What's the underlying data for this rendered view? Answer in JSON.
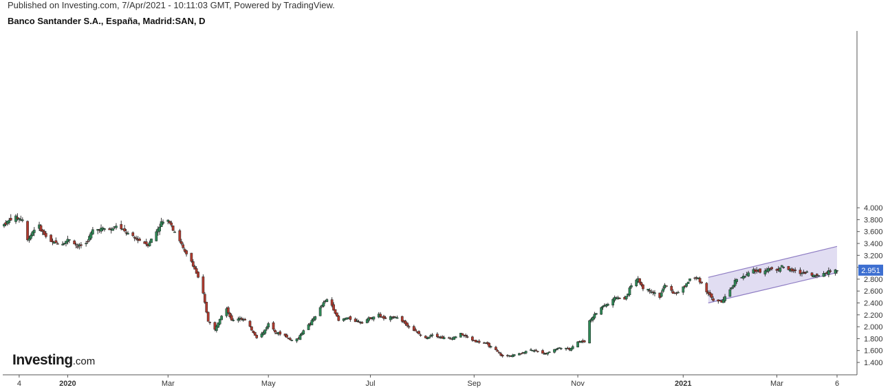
{
  "header": {
    "published": "Published on Investing.com, 7/Apr/2021 - 10:11:03 GMT, Powered by TradingView.",
    "title": "Banco Santander S.A., España, Madrid:SAN, D"
  },
  "logo": {
    "main": "Investing",
    "suffix": ".com"
  },
  "colors": {
    "up": "#2f8a57",
    "down": "#b03a2e",
    "wick": "#333333",
    "channel_fill": "#d9d4ef",
    "channel_line": "#8e7cc3",
    "price_badge": "#3d6fd1"
  },
  "chart_data": {
    "type": "candlestick",
    "title": "Banco Santander S.A., España, Madrid:SAN, D",
    "ylim": [
      1.33,
      4.1
    ],
    "y_ticks": [
      "4.000",
      "3.800",
      "3.600",
      "3.400",
      "3.200",
      "3.000",
      "2.800",
      "2.600",
      "2.400",
      "2.200",
      "2.000",
      "1.800",
      "1.600",
      "1.400"
    ],
    "x_ticks": [
      "4",
      "2020",
      "Mar",
      "May",
      "Jul",
      "Sep",
      "Nov",
      "2021",
      "Mar",
      "6"
    ],
    "last_price": "2.951",
    "grid": false,
    "trend_channel": {
      "upper": [
        [
          "Jan 19, 2021",
          2.83
        ],
        [
          "Apr 6, 2021",
          3.35
        ]
      ],
      "lower": [
        [
          "Jan 19, 2021",
          2.4
        ],
        [
          "Apr 6, 2021",
          2.91
        ]
      ]
    },
    "series": [
      {
        "date": "Nov 25, 2019",
        "close": 3.72
      },
      {
        "date": "Dec 1, 2019",
        "close": 3.85
      },
      {
        "date": "Dec 6, 2019",
        "close": 3.8
      },
      {
        "date": "Dec 9, 2019",
        "close": 3.45
      },
      {
        "date": "Dec 13, 2019",
        "close": 3.65
      },
      {
        "date": "Dec 16, 2019",
        "close": 3.68
      },
      {
        "date": "Dec 19, 2019",
        "close": 3.55
      },
      {
        "date": "Dec 23, 2019",
        "close": 3.42
      },
      {
        "date": "Dec 30, 2019",
        "close": 3.4
      },
      {
        "date": "Jan 3, 2020",
        "close": 3.48
      },
      {
        "date": "Jan 8, 2020",
        "close": 3.35
      },
      {
        "date": "Jan 13, 2020",
        "close": 3.4
      },
      {
        "date": "Jan 17, 2020",
        "close": 3.62
      },
      {
        "date": "Jan 22, 2020",
        "close": 3.65
      },
      {
        "date": "Jan 28, 2020",
        "close": 3.63
      },
      {
        "date": "Jan 31, 2020",
        "close": 3.7
      },
      {
        "date": "Feb 5, 2020",
        "close": 3.6
      },
      {
        "date": "Feb 10, 2020",
        "close": 3.5
      },
      {
        "date": "Feb 14, 2020",
        "close": 3.45
      },
      {
        "date": "Feb 19, 2020",
        "close": 3.38
      },
      {
        "date": "Feb 24, 2020",
        "close": 3.6
      },
      {
        "date": "Feb 27, 2020",
        "close": 3.75
      },
      {
        "date": "Mar 3, 2020",
        "close": 3.78
      },
      {
        "date": "Mar 5, 2020",
        "close": 3.65
      },
      {
        "date": "Mar 9, 2020",
        "close": 3.45
      },
      {
        "date": "Mar 12, 2020",
        "close": 3.25
      },
      {
        "date": "Mar 16, 2020",
        "close": 3.1
      },
      {
        "date": "Mar 19, 2020",
        "close": 2.9
      },
      {
        "date": "Mar 23, 2020",
        "close": 2.55
      },
      {
        "date": "Mar 26, 2020",
        "close": 2.1
      },
      {
        "date": "Mar 30, 2020",
        "close": 1.95
      },
      {
        "date": "Apr 2, 2020",
        "close": 2.15
      },
      {
        "date": "Apr 6, 2020",
        "close": 2.32
      },
      {
        "date": "Apr 9, 2020",
        "close": 2.1
      },
      {
        "date": "Apr 14, 2020",
        "close": 2.15
      },
      {
        "date": "Apr 17, 2020",
        "close": 2.1
      },
      {
        "date": "Apr 21, 2020",
        "close": 1.95
      },
      {
        "date": "Apr 24, 2020",
        "close": 1.82
      },
      {
        "date": "Apr 28, 2020",
        "close": 1.9
      },
      {
        "date": "May 1, 2020",
        "close": 2.05
      },
      {
        "date": "May 6, 2020",
        "close": 1.9
      },
      {
        "date": "May 11, 2020",
        "close": 1.85
      },
      {
        "date": "May 14, 2020",
        "close": 1.78
      },
      {
        "date": "May 19, 2020",
        "close": 1.8
      },
      {
        "date": "May 22, 2020",
        "close": 1.95
      },
      {
        "date": "May 26, 2020",
        "close": 2.05
      },
      {
        "date": "May 29, 2020",
        "close": 2.18
      },
      {
        "date": "Jun 3, 2020",
        "close": 2.4
      },
      {
        "date": "Jun 6, 2020",
        "close": 2.48
      },
      {
        "date": "Jun 9, 2020",
        "close": 2.3
      },
      {
        "date": "Jun 12, 2020",
        "close": 2.1
      },
      {
        "date": "Jun 17, 2020",
        "close": 2.15
      },
      {
        "date": "Jun 22, 2020",
        "close": 2.1
      },
      {
        "date": "Jun 26, 2020",
        "close": 2.08
      },
      {
        "date": "Jul 1, 2020",
        "close": 2.15
      },
      {
        "date": "Jul 6, 2020",
        "close": 2.2
      },
      {
        "date": "Jul 10, 2020",
        "close": 2.12
      },
      {
        "date": "Jul 15, 2020",
        "close": 2.18
      },
      {
        "date": "Jul 20, 2020",
        "close": 2.1
      },
      {
        "date": "Jul 24, 2020",
        "close": 2.0
      },
      {
        "date": "Jul 29, 2020",
        "close": 1.9
      },
      {
        "date": "Aug 3, 2020",
        "close": 1.8
      },
      {
        "date": "Aug 7, 2020",
        "close": 1.88
      },
      {
        "date": "Aug 12, 2020",
        "close": 1.82
      },
      {
        "date": "Aug 18, 2020",
        "close": 1.8
      },
      {
        "date": "Aug 24, 2020",
        "close": 1.88
      },
      {
        "date": "Aug 28, 2020",
        "close": 1.82
      },
      {
        "date": "Sep 2, 2020",
        "close": 1.75
      },
      {
        "date": "Sep 8, 2020",
        "close": 1.72
      },
      {
        "date": "Sep 14, 2020",
        "close": 1.6
      },
      {
        "date": "Sep 18, 2020",
        "close": 1.5
      },
      {
        "date": "Sep 23, 2020",
        "close": 1.52
      },
      {
        "date": "Sep 29, 2020",
        "close": 1.55
      },
      {
        "date": "Oct 5, 2020",
        "close": 1.62
      },
      {
        "date": "Oct 9, 2020",
        "close": 1.58
      },
      {
        "date": "Oct 14, 2020",
        "close": 1.55
      },
      {
        "date": "Oct 19, 2020",
        "close": 1.62
      },
      {
        "date": "Oct 23, 2020",
        "close": 1.65
      },
      {
        "date": "Oct 28, 2020",
        "close": 1.62
      },
      {
        "date": "Nov 2, 2020",
        "close": 1.75
      },
      {
        "date": "Nov 6, 2020",
        "close": 1.75
      },
      {
        "date": "Nov 9, 2020",
        "close": 2.1
      },
      {
        "date": "Nov 12, 2020",
        "close": 2.2
      },
      {
        "date": "Nov 17, 2020",
        "close": 2.35
      },
      {
        "date": "Nov 20, 2020",
        "close": 2.38
      },
      {
        "date": "Nov 25, 2020",
        "close": 2.5
      },
      {
        "date": "Nov 30, 2020",
        "close": 2.45
      },
      {
        "date": "Dec 4, 2020",
        "close": 2.7
      },
      {
        "date": "Dec 8, 2020",
        "close": 2.8
      },
      {
        "date": "Dec 11, 2020",
        "close": 2.65
      },
      {
        "date": "Dec 16, 2020",
        "close": 2.6
      },
      {
        "date": "Dec 21, 2020",
        "close": 2.5
      },
      {
        "date": "Dec 24, 2020",
        "close": 2.7
      },
      {
        "date": "Dec 30, 2020",
        "close": 2.55
      },
      {
        "date": "Jan 4, 2021",
        "close": 2.65
      },
      {
        "date": "Jan 8, 2021",
        "close": 2.8
      },
      {
        "date": "Jan 13, 2021",
        "close": 2.82
      },
      {
        "date": "Jan 18, 2021",
        "close": 2.6
      },
      {
        "date": "Jan 22, 2021",
        "close": 2.45
      },
      {
        "date": "Jan 27, 2021",
        "close": 2.42
      },
      {
        "date": "Feb 1, 2021",
        "close": 2.6
      },
      {
        "date": "Feb 5, 2021",
        "close": 2.82
      },
      {
        "date": "Feb 10, 2021",
        "close": 2.85
      },
      {
        "date": "Feb 15, 2021",
        "close": 2.95
      },
      {
        "date": "Feb 19, 2021",
        "close": 2.92
      },
      {
        "date": "Feb 24, 2021",
        "close": 2.98
      },
      {
        "date": "Mar 1, 2021",
        "close": 2.95
      },
      {
        "date": "Mar 4, 2021",
        "close": 3.02
      },
      {
        "date": "Mar 9, 2021",
        "close": 2.95
      },
      {
        "date": "Mar 15, 2021",
        "close": 2.9
      },
      {
        "date": "Mar 19, 2021",
        "close": 2.92
      },
      {
        "date": "Mar 24, 2021",
        "close": 2.85
      },
      {
        "date": "Mar 29, 2021",
        "close": 2.9
      },
      {
        "date": "Apr 1, 2021",
        "close": 2.93
      },
      {
        "date": "Apr 6, 2021",
        "close": 2.951
      }
    ]
  }
}
